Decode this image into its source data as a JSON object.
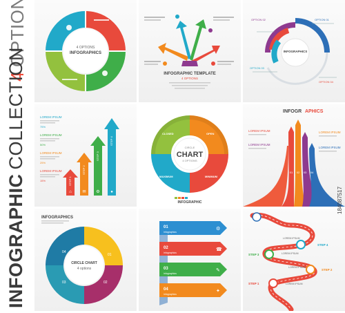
{
  "title": {
    "sub_number": "4",
    "sub_text": "OPTIONS",
    "word1": "INFOGRAPHIC",
    "word2": "COLLECTION"
  },
  "stock_id": "184087517",
  "colors": {
    "red": "#e84a3c",
    "orange": "#f28a1e",
    "green": "#3fae49",
    "teal": "#21a9c9",
    "blue": "#2d6fb7",
    "purple": "#8e3a8f",
    "lime": "#93c13e"
  },
  "tiles": {
    "t1": {
      "center_1": "4 OPTIONS",
      "center_2": "INFOGRAPHICS",
      "nums": [
        "01",
        "02",
        "03",
        "04"
      ]
    },
    "t2": {
      "title": "INFOGRAPHIC TEMPLATE",
      "sub": "4 OPTIONS",
      "arrows": [
        "OPTION 01",
        "OPTION 02",
        "OPTION 03",
        "OPTION 04"
      ]
    },
    "t3": {
      "center": "INFOGRAPHICS",
      "opts": [
        "OPTION 01",
        "OPTION 02",
        "OPTION 03",
        "OPTION 04"
      ]
    },
    "t4": {
      "labels": [
        "LOREM IPSUM",
        "LOREM IPSUM",
        "LOREM IPSUM",
        "LOREM IPSUM"
      ],
      "pcts": [
        "75%",
        "50%",
        "25%",
        "15%"
      ],
      "steps": [
        "STEP 4",
        "STEP 3",
        "STEP 2",
        "STEP 1"
      ]
    },
    "t5": {
      "center_1": "CIRCLE",
      "center_2": "CHART",
      "center_3": "4 OPTIONS",
      "footer": "INFOGRAPHIC",
      "opts": [
        "CLOSED",
        "OPEN",
        "MAXIMUM",
        "MINIMUM"
      ]
    },
    "t6": {
      "title_1": "INFOGR",
      "title_2": "APHICS",
      "labels": [
        "LOREM IPSUM",
        "LOREM IPSUM",
        "LOREM IPSUM",
        "LOREM IPSUM"
      ],
      "nums": [
        "01",
        "02",
        "03",
        "04"
      ]
    },
    "t7": {
      "title": "INFOGRAPHICS",
      "center_1": "CIRCLE CHART",
      "center_2": "4 options",
      "nums": [
        "01",
        "02",
        "03",
        "04"
      ]
    },
    "t8": {
      "nums": [
        "01",
        "02",
        "03",
        "04"
      ],
      "labels": [
        "infographics",
        "infographics",
        "infographics",
        "infographics"
      ]
    },
    "t9": {
      "steps": [
        "STEP 4",
        "STEP 3",
        "STEP 2",
        "STEP 1"
      ],
      "labels": [
        "LOREM IPSUM",
        "LOREM IPSUM",
        "LOREM IPSUM",
        "LOREM IPSUM"
      ]
    }
  }
}
